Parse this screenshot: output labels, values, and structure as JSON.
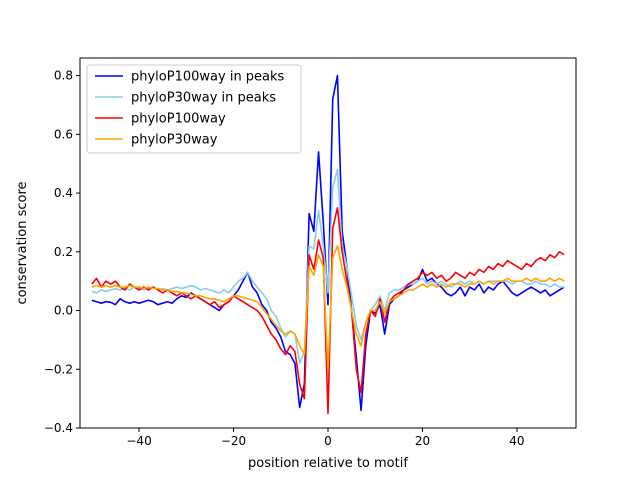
{
  "chart_data": {
    "type": "line",
    "title": "",
    "xlabel": "position relative to motif",
    "ylabel": "conservation score",
    "xlim": [
      -52.5,
      52.5
    ],
    "ylim": [
      -0.4,
      0.86
    ],
    "xticks": [
      -40,
      -20,
      0,
      20,
      40
    ],
    "xtick_labels": [
      "−40",
      "−20",
      "0",
      "20",
      "40"
    ],
    "yticks": [
      -0.4,
      -0.2,
      0.0,
      0.2,
      0.4,
      0.6,
      0.8
    ],
    "ytick_labels": [
      "−0.4",
      "−0.2",
      "0.0",
      "0.2",
      "0.4",
      "0.6",
      "0.8"
    ],
    "grid": false,
    "legend_position": "top-left",
    "x_start": -50,
    "series": [
      {
        "name": "phyloP100way in peaks",
        "color": "#0000ff",
        "values": [
          0.035,
          0.03,
          0.025,
          0.03,
          0.028,
          0.02,
          0.04,
          0.03,
          0.025,
          0.03,
          0.025,
          0.03,
          0.035,
          0.03,
          0.02,
          0.025,
          0.03,
          0.025,
          0.04,
          0.05,
          0.045,
          0.06,
          0.05,
          0.04,
          0.03,
          0.02,
          0.01,
          0.0,
          0.02,
          0.03,
          0.05,
          0.07,
          0.1,
          0.13,
          0.08,
          0.06,
          0.02,
          0.0,
          -0.04,
          -0.06,
          -0.09,
          -0.14,
          -0.15,
          -0.18,
          -0.33,
          -0.25,
          0.33,
          0.27,
          0.54,
          0.3,
          0.02,
          0.72,
          0.8,
          0.27,
          0.15,
          0.0,
          -0.16,
          -0.34,
          -0.12,
          0.0,
          -0.01,
          0.02,
          -0.08,
          0.02,
          0.04,
          0.05,
          0.07,
          0.08,
          0.09,
          0.1,
          0.14,
          0.1,
          0.11,
          0.09,
          0.08,
          0.06,
          0.05,
          0.06,
          0.08,
          0.05,
          0.08,
          0.07,
          0.09,
          0.06,
          0.08,
          0.07,
          0.09,
          0.1,
          0.08,
          0.06,
          0.05,
          0.06,
          0.07,
          0.08,
          0.07,
          0.06,
          0.07,
          0.05,
          0.06,
          0.07,
          0.08
        ]
      },
      {
        "name": "phyloP30way in peaks",
        "color": "#87ceeb",
        "values": [
          0.065,
          0.06,
          0.07,
          0.065,
          0.07,
          0.075,
          0.07,
          0.075,
          0.07,
          0.08,
          0.075,
          0.07,
          0.075,
          0.08,
          0.07,
          0.075,
          0.07,
          0.075,
          0.08,
          0.075,
          0.08,
          0.085,
          0.08,
          0.07,
          0.075,
          0.07,
          0.065,
          0.06,
          0.07,
          0.06,
          0.08,
          0.1,
          0.11,
          0.13,
          0.1,
          0.08,
          0.06,
          0.04,
          0.0,
          -0.02,
          -0.06,
          -0.09,
          -0.07,
          -0.08,
          -0.18,
          -0.14,
          0.22,
          0.21,
          0.34,
          0.22,
          0.06,
          0.42,
          0.48,
          0.22,
          0.15,
          0.05,
          -0.05,
          -0.1,
          -0.04,
          0.0,
          0.02,
          0.05,
          0.0,
          0.06,
          0.07,
          0.07,
          0.08,
          0.09,
          0.09,
          0.1,
          0.11,
          0.09,
          0.1,
          0.09,
          0.1,
          0.09,
          0.08,
          0.09,
          0.1,
          0.09,
          0.1,
          0.09,
          0.1,
          0.09,
          0.1,
          0.1,
          0.1,
          0.1,
          0.1,
          0.09,
          0.1,
          0.1,
          0.09,
          0.09,
          0.1,
          0.09,
          0.09,
          0.08,
          0.09,
          0.08,
          0.08
        ]
      },
      {
        "name": "phyloP100way",
        "color": "#ff0000",
        "values": [
          0.09,
          0.11,
          0.08,
          0.1,
          0.09,
          0.1,
          0.08,
          0.07,
          0.09,
          0.08,
          0.07,
          0.08,
          0.07,
          0.08,
          0.07,
          0.06,
          0.07,
          0.06,
          0.05,
          0.06,
          0.05,
          0.04,
          0.05,
          0.04,
          0.03,
          0.02,
          0.03,
          0.01,
          0.02,
          0.03,
          0.05,
          0.04,
          0.03,
          0.02,
          0.01,
          0.0,
          -0.02,
          -0.05,
          -0.08,
          -0.1,
          -0.13,
          -0.15,
          -0.12,
          -0.14,
          -0.25,
          -0.3,
          0.19,
          0.14,
          0.24,
          0.18,
          -0.35,
          0.28,
          0.35,
          0.2,
          0.1,
          0.0,
          -0.2,
          -0.28,
          -0.08,
          0.0,
          -0.02,
          0.04,
          -0.04,
          0.03,
          0.05,
          0.06,
          0.07,
          0.09,
          0.1,
          0.11,
          0.13,
          0.12,
          0.13,
          0.11,
          0.12,
          0.1,
          0.11,
          0.13,
          0.12,
          0.11,
          0.13,
          0.12,
          0.14,
          0.13,
          0.15,
          0.14,
          0.16,
          0.15,
          0.17,
          0.16,
          0.15,
          0.14,
          0.16,
          0.15,
          0.17,
          0.18,
          0.17,
          0.19,
          0.18,
          0.2,
          0.19
        ]
      },
      {
        "name": "phyloP30way",
        "color": "#ffa500",
        "values": [
          0.08,
          0.085,
          0.08,
          0.085,
          0.08,
          0.085,
          0.08,
          0.08,
          0.085,
          0.08,
          0.08,
          0.075,
          0.08,
          0.075,
          0.075,
          0.07,
          0.07,
          0.065,
          0.065,
          0.06,
          0.06,
          0.055,
          0.05,
          0.05,
          0.045,
          0.04,
          0.04,
          0.035,
          0.03,
          0.04,
          0.05,
          0.05,
          0.045,
          0.04,
          0.035,
          0.03,
          0.01,
          -0.01,
          -0.03,
          -0.05,
          -0.07,
          -0.08,
          -0.07,
          -0.08,
          -0.12,
          -0.15,
          0.15,
          0.12,
          0.19,
          0.15,
          -0.2,
          0.18,
          0.22,
          0.14,
          0.08,
          0.0,
          -0.08,
          -0.12,
          -0.04,
          0.0,
          0.0,
          0.03,
          -0.01,
          0.03,
          0.04,
          0.05,
          0.06,
          0.07,
          0.07,
          0.08,
          0.09,
          0.08,
          0.09,
          0.08,
          0.09,
          0.08,
          0.09,
          0.09,
          0.09,
          0.08,
          0.09,
          0.09,
          0.1,
          0.09,
          0.1,
          0.09,
          0.1,
          0.1,
          0.11,
          0.1,
          0.1,
          0.1,
          0.11,
          0.1,
          0.11,
          0.1,
          0.1,
          0.11,
          0.1,
          0.11,
          0.1
        ]
      }
    ]
  }
}
